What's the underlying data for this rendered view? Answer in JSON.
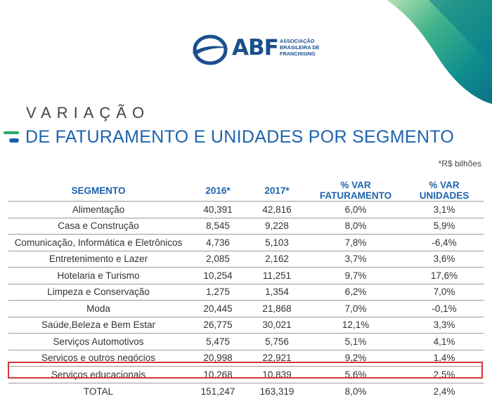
{
  "logo": {
    "acronym": "ABF",
    "subtitle": [
      "ASSOCIAÇÃO",
      "BRASILEIRA DE",
      "FRANCHISING"
    ]
  },
  "title": {
    "line1": "VARIAÇÃO",
    "line2": "DE FATURAMENTO E UNIDADES POR SEGMENTO"
  },
  "unit_note": "*R$ bilhões",
  "table": {
    "headers": [
      "SEGMENTO",
      "2016*",
      "2017*",
      "% VAR FATURAMENTO",
      "% VAR UNIDADES"
    ],
    "rows": [
      [
        "Alimentação",
        "40,391",
        "42,816",
        "6,0%",
        "3,1%"
      ],
      [
        "Casa e Construção",
        "8,545",
        "9,228",
        "8,0%",
        "5,9%"
      ],
      [
        "Comunicação, Informática e Eletrônicos",
        "4,736",
        "5,103",
        "7,8%",
        "-6,4%"
      ],
      [
        "Entretenimento e Lazer",
        "2,085",
        "2,162",
        "3,7%",
        "3,6%"
      ],
      [
        "Hotelaria e Turismo",
        "10,254",
        "11,251",
        "9,7%",
        "17,6%"
      ],
      [
        "Limpeza e Conservação",
        "1,275",
        "1,354",
        "6,2%",
        "7,0%"
      ],
      [
        "Moda",
        "20,445",
        "21,868",
        "7,0%",
        "-0,1%"
      ],
      [
        "Saúde,Beleza e Bem Estar",
        "26,775",
        "30,021",
        "12,1%",
        "3,3%"
      ],
      [
        "Serviços Automotivos",
        "5,475",
        "5,756",
        "5,1%",
        "4,1%"
      ],
      [
        "Serviços e outros negócios",
        "20,998",
        "22,921",
        "9,2%",
        "1,4%"
      ],
      [
        "Serviços educacionais",
        "10,268",
        "10,839",
        "5,6%",
        "2,5%"
      ]
    ],
    "total": [
      "TOTAL",
      "151,247",
      "163,319",
      "8,0%",
      "2,4%"
    ],
    "highlighted_row": "Serviços educacionais"
  },
  "colors": {
    "brand_blue": "#1a4f8c",
    "title_blue": "#1d63ad",
    "header_blue": "#1d63ad",
    "highlight_red": "#d9323a",
    "accent_green": "#2aa86a",
    "accent_teal": "#0e8d8a"
  },
  "icons": {
    "logo_emblem": "globe-orbit-icon",
    "title_marks": "green-blue-dash-icon"
  }
}
